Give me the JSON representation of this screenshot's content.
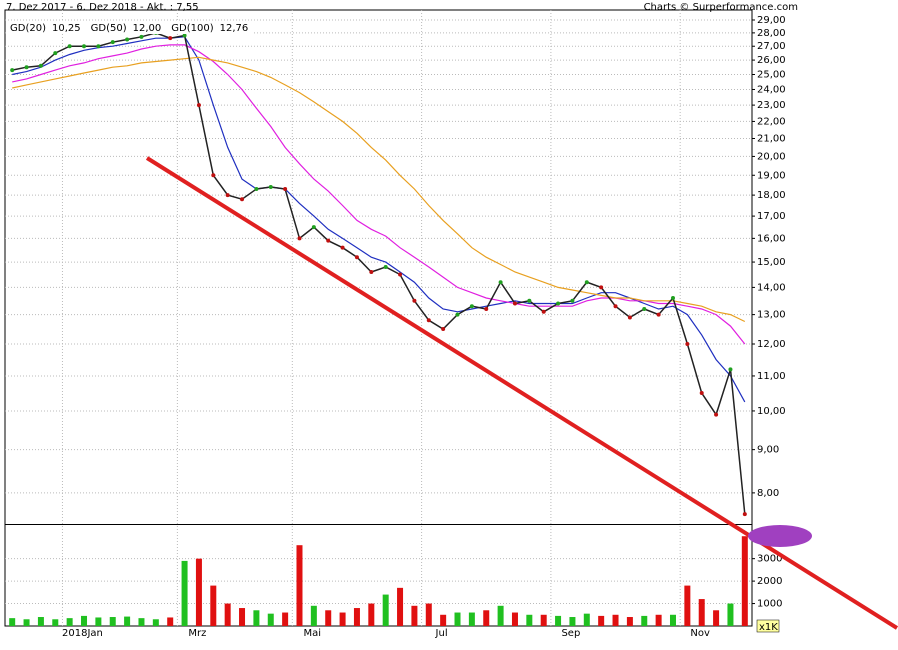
{
  "chart_data": [
    {
      "type": "line",
      "title": "7. Dez 2017 - 6. Dez 2018 - Akt. : 7,55",
      "source": "Charts © Surperformance.com",
      "categories": [
        null,
        null,
        null,
        null,
        "2018Jan",
        null,
        null,
        null,
        null,
        null,
        null,
        null,
        "Mrz",
        null,
        null,
        null,
        null,
        null,
        null,
        null,
        "Mai",
        null,
        null,
        null,
        null,
        null,
        null,
        null,
        null,
        "Jul",
        null,
        null,
        null,
        null,
        null,
        null,
        null,
        null,
        "Sep",
        null,
        null,
        null,
        null,
        null,
        null,
        null,
        null,
        "Nov",
        null,
        null,
        null,
        null
      ],
      "values": [
        25.3,
        25.5,
        25.6,
        26.5,
        27.0,
        27.0,
        27.0,
        27.3,
        27.5,
        27.7,
        28.0,
        27.6,
        27.8,
        23.0,
        19.0,
        18.0,
        17.8,
        18.3,
        18.4,
        18.3,
        16.0,
        16.5,
        15.9,
        15.6,
        15.2,
        14.6,
        14.8,
        14.5,
        13.5,
        12.8,
        12.5,
        13.0,
        13.3,
        13.2,
        14.2,
        13.4,
        13.5,
        13.1,
        13.4,
        13.5,
        14.2,
        14.0,
        13.3,
        12.9,
        13.2,
        13.0,
        13.6,
        12.0,
        10.5,
        9.9,
        11.2,
        7.55
      ],
      "color": "#222222",
      "series": [
        {
          "name": "GD(20)",
          "color": "#1f2fc0",
          "values": [
            25.0,
            25.2,
            25.5,
            26.0,
            26.4,
            26.7,
            26.9,
            27.0,
            27.2,
            27.4,
            27.6,
            27.6,
            27.7,
            26.0,
            23.0,
            20.5,
            18.8,
            18.3,
            18.4,
            18.3,
            17.6,
            17.0,
            16.4,
            16.0,
            15.6,
            15.2,
            15.0,
            14.6,
            14.2,
            13.6,
            13.2,
            13.1,
            13.2,
            13.3,
            13.4,
            13.5,
            13.4,
            13.4,
            13.4,
            13.4,
            13.6,
            13.8,
            13.8,
            13.6,
            13.4,
            13.2,
            13.3,
            13.0,
            12.3,
            11.5,
            11.0,
            10.25
          ],
          "value_labels": [
            null,
            null,
            null,
            null,
            null,
            null,
            null,
            null,
            null,
            null,
            null,
            null,
            null,
            null,
            null,
            null,
            null,
            null,
            null,
            null,
            null,
            null,
            null,
            null,
            null,
            null,
            null,
            null,
            null,
            null,
            null,
            null,
            null,
            null,
            null,
            null,
            null,
            null,
            null,
            null,
            null,
            null,
            null,
            null,
            null,
            null,
            null,
            null,
            null,
            null,
            null,
            "10,25"
          ]
        },
        {
          "name": "GD(50)",
          "color": "#e020e0",
          "values": [
            24.5,
            24.7,
            25.0,
            25.3,
            25.6,
            25.8,
            26.1,
            26.3,
            26.5,
            26.8,
            27.0,
            27.1,
            27.1,
            26.6,
            25.9,
            25.0,
            24.0,
            22.8,
            21.7,
            20.5,
            19.6,
            18.8,
            18.2,
            17.5,
            16.8,
            16.4,
            16.1,
            15.6,
            15.2,
            14.8,
            14.4,
            14.0,
            13.8,
            13.6,
            13.5,
            13.4,
            13.3,
            13.3,
            13.3,
            13.3,
            13.5,
            13.6,
            13.6,
            13.5,
            13.5,
            13.4,
            13.4,
            13.3,
            13.2,
            13.0,
            12.6,
            12.0
          ],
          "value_labels": [
            null,
            null,
            null,
            null,
            null,
            null,
            null,
            null,
            null,
            null,
            null,
            null,
            null,
            null,
            null,
            null,
            null,
            null,
            null,
            null,
            null,
            null,
            null,
            null,
            null,
            null,
            null,
            null,
            null,
            null,
            null,
            null,
            null,
            null,
            null,
            null,
            null,
            null,
            null,
            null,
            null,
            null,
            null,
            null,
            null,
            null,
            null,
            null,
            null,
            null,
            null,
            "12,00"
          ]
        },
        {
          "name": "GD(100)",
          "color": "#e8a020",
          "values": [
            24.1,
            24.3,
            24.5,
            24.7,
            24.9,
            25.1,
            25.3,
            25.5,
            25.6,
            25.8,
            25.9,
            26.0,
            26.1,
            26.2,
            26.0,
            25.8,
            25.5,
            25.2,
            24.8,
            24.3,
            23.8,
            23.2,
            22.6,
            22.0,
            21.3,
            20.5,
            19.8,
            19.0,
            18.3,
            17.5,
            16.8,
            16.2,
            15.6,
            15.2,
            14.9,
            14.6,
            14.4,
            14.2,
            14.0,
            13.9,
            13.8,
            13.7,
            13.6,
            13.6,
            13.5,
            13.5,
            13.5,
            13.4,
            13.3,
            13.1,
            13.0,
            12.76
          ],
          "value_labels": [
            null,
            null,
            null,
            null,
            null,
            null,
            null,
            null,
            null,
            null,
            null,
            null,
            null,
            null,
            null,
            null,
            null,
            null,
            null,
            null,
            null,
            null,
            null,
            null,
            null,
            null,
            null,
            null,
            null,
            null,
            null,
            null,
            null,
            null,
            null,
            null,
            null,
            null,
            null,
            null,
            null,
            null,
            null,
            null,
            null,
            null,
            null,
            null,
            null,
            null,
            null,
            "12,76"
          ]
        }
      ],
      "y_scale": "log",
      "ylim": [
        7.35,
        29.8
      ],
      "yticks": [
        {
          "value": 8,
          "label": "8,00"
        },
        {
          "value": 9,
          "label": "9,00"
        },
        {
          "value": 10,
          "label": "10,00"
        },
        {
          "value": 11,
          "label": "11,00"
        },
        {
          "value": 12,
          "label": "12,00"
        },
        {
          "value": 13,
          "label": "13,00"
        },
        {
          "value": 14,
          "label": "14,00"
        },
        {
          "value": 15,
          "label": "15,00"
        },
        {
          "value": 16,
          "label": "16,00"
        },
        {
          "value": 17,
          "label": "17,00"
        },
        {
          "value": 18,
          "label": "18,00"
        },
        {
          "value": 19,
          "label": "19,00"
        },
        {
          "value": 20,
          "label": "20,00"
        },
        {
          "value": 21,
          "label": "21,00"
        },
        {
          "value": 22,
          "label": "22,00"
        },
        {
          "value": 23,
          "label": "23,00"
        },
        {
          "value": 24,
          "label": "24,00"
        },
        {
          "value": 25,
          "label": "25,00"
        },
        {
          "value": 26,
          "label": "26,00"
        },
        {
          "value": 27,
          "label": "27,00"
        },
        {
          "value": 28,
          "label": "28,00"
        },
        {
          "value": 29,
          "label": "29,00"
        }
      ],
      "grid": true
    },
    {
      "type": "bar",
      "values": [
        350,
        300,
        400,
        300,
        350,
        450,
        380,
        400,
        420,
        350,
        300,
        380,
        2900,
        3000,
        1800,
        1000,
        800,
        700,
        550,
        600,
        3600,
        900,
        700,
        600,
        800,
        1000,
        1400,
        1700,
        900,
        1000,
        500,
        600,
        600,
        700,
        900,
        600,
        500,
        500,
        450,
        400,
        550,
        450,
        500,
        400,
        450,
        500,
        500,
        1800,
        1200,
        700,
        1000,
        4000
      ],
      "up_color": "#20c020",
      "down_color": "#e01010",
      "ylim": [
        0,
        4500
      ],
      "yticks": [
        1000,
        2000,
        3000
      ],
      "unit_label": "x1K",
      "grid": true
    }
  ]
}
